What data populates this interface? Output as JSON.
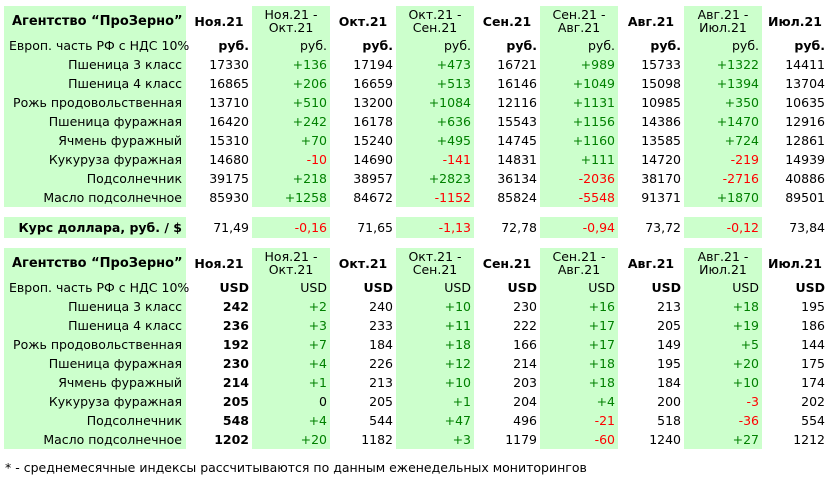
{
  "title": "Агентство “ПроЗерно”",
  "columns": [
    "Ноя.21",
    "Ноя.21 - Окт.21",
    "Окт.21",
    "Окт.21 - Сен.21",
    "Сен.21",
    "Сен.21 - Авг.21",
    "Авг.21",
    "Авг.21 - Июл.21",
    "Июл.21"
  ],
  "rub_table": {
    "subtitle": "Европ. часть РФ с НДС 10%",
    "unit": "руб.",
    "rows": [
      {
        "name": "Пшеница 3 класс",
        "vals": [
          "17330",
          "+136",
          "17194",
          "+473",
          "16721",
          "+989",
          "15733",
          "+1322",
          "14411"
        ]
      },
      {
        "name": "Пшеница 4 класс",
        "vals": [
          "16865",
          "+206",
          "16659",
          "+513",
          "16146",
          "+1049",
          "15098",
          "+1394",
          "13704"
        ]
      },
      {
        "name": "Рожь продовольственная",
        "vals": [
          "13710",
          "+510",
          "13200",
          "+1084",
          "12116",
          "+1131",
          "10985",
          "+350",
          "10635"
        ]
      },
      {
        "name": "Пшеница фуражная",
        "vals": [
          "16420",
          "+242",
          "16178",
          "+636",
          "15543",
          "+1156",
          "14386",
          "+1470",
          "12916"
        ]
      },
      {
        "name": "Ячмень фуражный",
        "vals": [
          "15310",
          "+70",
          "15240",
          "+495",
          "14745",
          "+1160",
          "13585",
          "+724",
          "12861"
        ]
      },
      {
        "name": "Кукуруза фуражная",
        "vals": [
          "14680",
          "-10",
          "14690",
          "-141",
          "14831",
          "+111",
          "14720",
          "-219",
          "14939"
        ]
      },
      {
        "name": "Подсолнечник",
        "vals": [
          "39175",
          "+218",
          "38957",
          "+2823",
          "36134",
          "-2036",
          "38170",
          "-2716",
          "40886"
        ]
      },
      {
        "name": "Масло подсолнечное",
        "vals": [
          "85930",
          "+1258",
          "84672",
          "-1152",
          "85824",
          "-5548",
          "91371",
          "+1870",
          "89501"
        ]
      }
    ]
  },
  "rate": {
    "label": "Курс доллара, руб. / $",
    "vals": [
      "71,49",
      "-0,16",
      "71,65",
      "-1,13",
      "72,78",
      "-0,94",
      "73,72",
      "-0,12",
      "73,84"
    ]
  },
  "usd_table": {
    "subtitle": "Европ. часть РФ с НДС 10%",
    "unit": "USD",
    "rows": [
      {
        "name": "Пшеница 3 класс",
        "vals": [
          "242",
          "+2",
          "240",
          "+10",
          "230",
          "+16",
          "213",
          "+18",
          "195"
        ]
      },
      {
        "name": "Пшеница 4 класс",
        "vals": [
          "236",
          "+3",
          "233",
          "+11",
          "222",
          "+17",
          "205",
          "+19",
          "186"
        ]
      },
      {
        "name": "Рожь продовольственная",
        "vals": [
          "192",
          "+7",
          "184",
          "+18",
          "166",
          "+17",
          "149",
          "+5",
          "144"
        ]
      },
      {
        "name": "Пшеница фуражная",
        "vals": [
          "230",
          "+4",
          "226",
          "+12",
          "214",
          "+18",
          "195",
          "+20",
          "175"
        ]
      },
      {
        "name": "Ячмень фуражный",
        "vals": [
          "214",
          "+1",
          "213",
          "+10",
          "203",
          "+18",
          "184",
          "+10",
          "174"
        ]
      },
      {
        "name": "Кукуруза фуражная",
        "vals": [
          "205",
          "0",
          "205",
          "+1",
          "204",
          "+4",
          "200",
          "-3",
          "202"
        ]
      },
      {
        "name": "Подсолнечник",
        "vals": [
          "548",
          "+4",
          "544",
          "+47",
          "496",
          "-21",
          "518",
          "-36",
          "554"
        ]
      },
      {
        "name": "Масло подсолнечное",
        "vals": [
          "1202",
          "+20",
          "1182",
          "+3",
          "1179",
          "-60",
          "1240",
          "+27",
          "1212"
        ]
      }
    ]
  },
  "footnote": "* - среднемесячные индексы рассчитываются по данным еженедельных мониторингов",
  "colors": {
    "highlight": "#ccffcc",
    "positive": "#008000",
    "negative": "#ff0000"
  }
}
